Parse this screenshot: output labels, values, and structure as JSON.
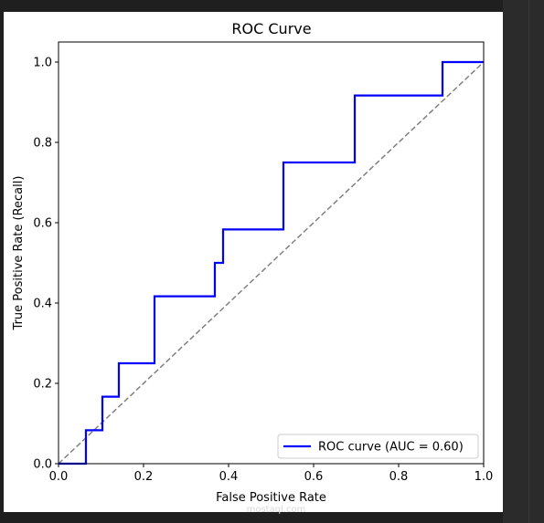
{
  "chart_data": {
    "type": "line",
    "title": "ROC Curve",
    "xlabel": "False Positive Rate",
    "ylabel": "True Positive Rate (Recall)",
    "xlim": [
      0.0,
      1.0
    ],
    "ylim": [
      0.0,
      1.05
    ],
    "xticks": [
      "0.0",
      "0.2",
      "0.4",
      "0.6",
      "0.8",
      "1.0"
    ],
    "yticks": [
      "0.0",
      "0.2",
      "0.4",
      "0.6",
      "0.8",
      "1.0"
    ],
    "grid": false,
    "legend_position": "lower-right",
    "series": [
      {
        "name": "ROC curve (AUC = 0.60)",
        "color": "#0000ff",
        "style": "solid",
        "x": [
          0.0,
          0.0645,
          0.0645,
          0.1032,
          0.1032,
          0.1419,
          0.1419,
          0.2258,
          0.2258,
          0.3677,
          0.3677,
          0.3871,
          0.3871,
          0.529,
          0.529,
          0.6968,
          0.6968,
          0.9032,
          0.9032,
          1.0
        ],
        "y": [
          0.0,
          0.0,
          0.0833,
          0.0833,
          0.1667,
          0.1667,
          0.25,
          0.25,
          0.4167,
          0.4167,
          0.5,
          0.5,
          0.5833,
          0.5833,
          0.75,
          0.75,
          0.9167,
          0.9167,
          1.0,
          1.0
        ]
      },
      {
        "color": "#808080",
        "style": "dashed",
        "x": [
          0.0,
          1.0
        ],
        "y": [
          0.0,
          1.0
        ]
      }
    ]
  },
  "watermark": {
    "text": "mostaql.com"
  }
}
